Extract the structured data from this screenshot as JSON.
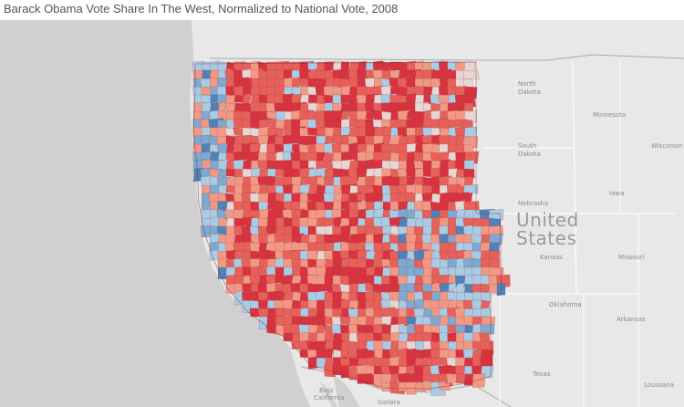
{
  "title": "Barack Obama Vote Share In The West, Normalized to National Vote, 2008",
  "colors": {
    "land": "#e8e8e8",
    "ocean": "#c8c8c8",
    "border": "#ffffff",
    "country_border": "#9a9a9a",
    "strong_red": "#d8333f",
    "red": "#e8605a",
    "light_red": "#f29985",
    "pale": "#e7d6d4",
    "light_blue": "#aacbe5",
    "blue": "#7fa9d1",
    "strong_blue": "#4f82b8"
  },
  "labels": {
    "country": "United",
    "country2": "States",
    "north_dakota": "North",
    "north_dakota2": "Dakota",
    "south_dakota": "South",
    "south_dakota2": "Dakota",
    "nebraska": "Nebraska",
    "kansas": "Kansas",
    "oklahoma": "Oklahoma",
    "texas": "Texas",
    "minnesota": "Minnesota",
    "wisconsin": "Wisconsin",
    "iowa": "Iowa",
    "missouri": "Missouri",
    "arkansas": "Arkansas",
    "louisiana": "Louisiana",
    "baja1": "Baja",
    "baja2": "California",
    "sonora": "Sonora"
  }
}
